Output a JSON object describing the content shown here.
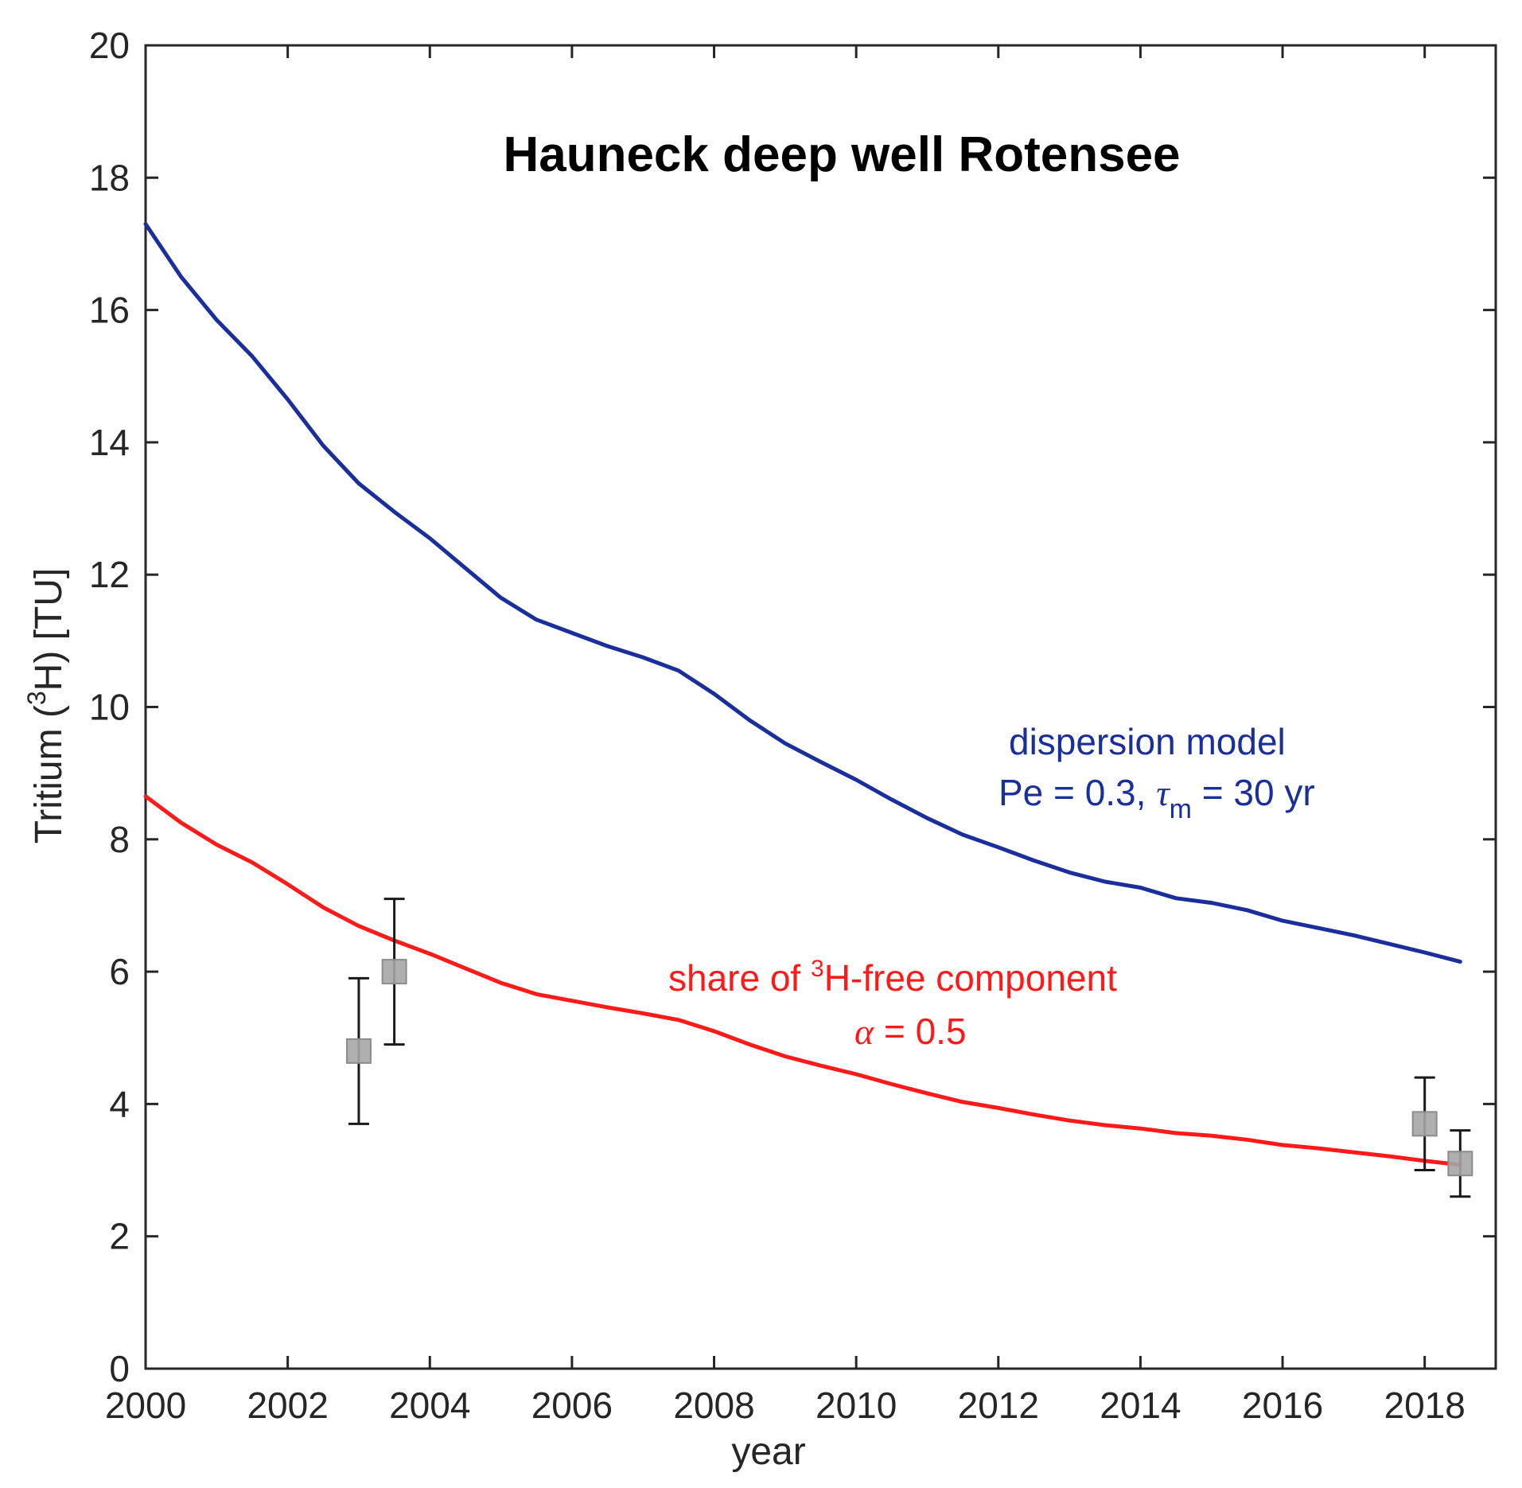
{
  "chart_data": {
    "type": "line",
    "title": "Hauneck deep well Rotensee",
    "xlabel": "year",
    "ylabel": {
      "prefix": "Tritium (",
      "sup": "3",
      "suffix": "H) [TU]"
    },
    "xlim": [
      2000,
      2019
    ],
    "ylim": [
      0,
      20
    ],
    "xticks": [
      2000,
      2002,
      2004,
      2006,
      2008,
      2010,
      2012,
      2014,
      2016,
      2018
    ],
    "yticks": [
      0,
      2,
      4,
      6,
      8,
      10,
      12,
      14,
      16,
      18,
      20
    ],
    "grid": false,
    "series": [
      {
        "kind": "line",
        "color": "#1a2f9c",
        "points": [
          [
            2000,
            17.3
          ],
          [
            2000.5,
            16.5
          ],
          [
            2001,
            15.85
          ],
          [
            2001.5,
            15.3
          ],
          [
            2002,
            14.65
          ],
          [
            2002.5,
            13.95
          ],
          [
            2003,
            13.38
          ],
          [
            2003.5,
            12.95
          ],
          [
            2004,
            12.55
          ],
          [
            2004.5,
            12.1
          ],
          [
            2005,
            11.65
          ],
          [
            2005.5,
            11.32
          ],
          [
            2006,
            11.12
          ],
          [
            2006.5,
            10.92
          ],
          [
            2007,
            10.75
          ],
          [
            2007.5,
            10.55
          ],
          [
            2008,
            10.2
          ],
          [
            2008.5,
            9.8
          ],
          [
            2009,
            9.45
          ],
          [
            2009.5,
            9.17
          ],
          [
            2010,
            8.9
          ],
          [
            2010.5,
            8.6
          ],
          [
            2011,
            8.32
          ],
          [
            2011.5,
            8.07
          ],
          [
            2012,
            7.88
          ],
          [
            2012.5,
            7.68
          ],
          [
            2013,
            7.5
          ],
          [
            2013.5,
            7.36
          ],
          [
            2014,
            7.27
          ],
          [
            2014.5,
            7.11
          ],
          [
            2015,
            7.04
          ],
          [
            2015.5,
            6.93
          ],
          [
            2016,
            6.77
          ],
          [
            2016.5,
            6.66
          ],
          [
            2017,
            6.55
          ],
          [
            2017.5,
            6.42
          ],
          [
            2018,
            6.29
          ],
          [
            2018.5,
            6.15
          ]
        ]
      },
      {
        "kind": "line",
        "color": "#ff1a1a",
        "points": [
          [
            2000,
            8.65
          ],
          [
            2000.5,
            8.25
          ],
          [
            2001,
            7.92
          ],
          [
            2001.5,
            7.65
          ],
          [
            2002,
            7.32
          ],
          [
            2002.5,
            6.97
          ],
          [
            2003,
            6.69
          ],
          [
            2003.5,
            6.47
          ],
          [
            2004,
            6.27
          ],
          [
            2004.5,
            6.05
          ],
          [
            2005,
            5.83
          ],
          [
            2005.5,
            5.66
          ],
          [
            2006,
            5.56
          ],
          [
            2006.5,
            5.46
          ],
          [
            2007,
            5.37
          ],
          [
            2007.5,
            5.27
          ],
          [
            2008,
            5.1
          ],
          [
            2008.5,
            4.9
          ],
          [
            2009,
            4.72
          ],
          [
            2009.5,
            4.58
          ],
          [
            2010,
            4.45
          ],
          [
            2010.5,
            4.3
          ],
          [
            2011,
            4.16
          ],
          [
            2011.5,
            4.03
          ],
          [
            2012,
            3.94
          ],
          [
            2012.5,
            3.84
          ],
          [
            2013,
            3.75
          ],
          [
            2013.5,
            3.68
          ],
          [
            2014,
            3.63
          ],
          [
            2014.5,
            3.56
          ],
          [
            2015,
            3.52
          ],
          [
            2015.5,
            3.46
          ],
          [
            2016,
            3.38
          ],
          [
            2016.5,
            3.33
          ],
          [
            2017,
            3.27
          ],
          [
            2017.5,
            3.21
          ],
          [
            2018,
            3.14
          ],
          [
            2018.5,
            3.08
          ]
        ]
      },
      {
        "kind": "points",
        "marker": "square",
        "color": "#a6a6a6",
        "points": [
          {
            "x": 2003.0,
            "y": 4.8,
            "err_low": 3.7,
            "err_high": 5.9
          },
          {
            "x": 2003.5,
            "y": 6.0,
            "err_low": 4.9,
            "err_high": 7.1
          },
          {
            "x": 2018.0,
            "y": 3.7,
            "err_low": 3.0,
            "err_high": 4.4
          },
          {
            "x": 2018.5,
            "y": 3.1,
            "err_low": 2.6,
            "err_high": 3.6
          }
        ]
      }
    ],
    "annotations": {
      "dispersion": {
        "color": "#1a2f9c",
        "line1": "dispersion model",
        "line2_prefix": "Pe = 0.3, ",
        "line2_greek": "τ",
        "line2_sub": "m",
        "line2_suffix": " = 30 yr"
      },
      "share": {
        "color": "#ff1a1a",
        "line1_prefix": "share of ",
        "line1_sup": "3",
        "line1_suffix": "H-free component",
        "line2_greek": "α",
        "line2_suffix": " = 0.5"
      }
    }
  }
}
